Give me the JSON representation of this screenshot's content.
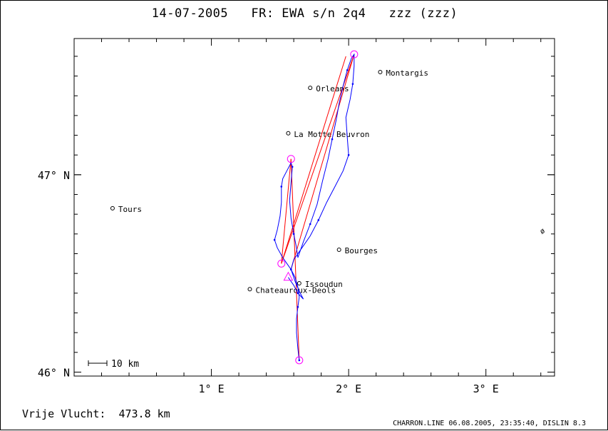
{
  "header": {
    "title": "14-07-2005   FR: EWA s/n 2q4   zzz (zzz)"
  },
  "axes": {
    "x_ticks": [
      {
        "label": "1° E",
        "lon": 1.0
      },
      {
        "label": "2° E",
        "lon": 2.0
      },
      {
        "label": "3° E",
        "lon": 3.0
      }
    ],
    "y_ticks": [
      {
        "label": "47° N",
        "lat": 47.0
      },
      {
        "label": "46° N",
        "lat": 46.0
      }
    ],
    "lon_range": [
      0.0,
      3.5
    ],
    "lat_range": [
      45.98,
      47.69
    ]
  },
  "scale_bar": {
    "label": "10 km",
    "km": 10
  },
  "towns": [
    {
      "name": "Montargis",
      "lon": 2.23,
      "lat": 47.52
    },
    {
      "name": "Orleans",
      "lon": 1.72,
      "lat": 47.44
    },
    {
      "name": "La Motte Beuvron",
      "lon": 1.56,
      "lat": 47.21
    },
    {
      "name": "Tours",
      "lon": 0.28,
      "lat": 46.83
    },
    {
      "name": "Bourges",
      "lon": 1.93,
      "lat": 46.62
    },
    {
      "name": "Issoudun",
      "lon": 1.64,
      "lat": 46.45
    },
    {
      "name": "Chateauroux-Deols",
      "lon": 1.28,
      "lat": 46.42
    }
  ],
  "task_points": [
    {
      "name": "start",
      "lon": 1.64,
      "lat": 46.06
    },
    {
      "name": "tp1",
      "lon": 1.58,
      "lat": 47.08
    },
    {
      "name": "tp2",
      "lon": 1.51,
      "lat": 46.55
    },
    {
      "name": "tp3",
      "lon": 2.04,
      "lat": 47.61
    }
  ],
  "finish_marker": {
    "lon": 1.56,
    "lat": 46.48
  },
  "track": [
    [
      1.64,
      46.06
    ],
    [
      1.63,
      46.12
    ],
    [
      1.62,
      46.2
    ],
    [
      1.62,
      46.27
    ],
    [
      1.63,
      46.33
    ],
    [
      1.64,
      46.38
    ],
    [
      1.63,
      46.43
    ],
    [
      1.61,
      46.48
    ],
    [
      1.58,
      46.52
    ],
    [
      1.55,
      46.55
    ],
    [
      1.52,
      46.58
    ],
    [
      1.48,
      46.63
    ],
    [
      1.46,
      46.67
    ],
    [
      1.48,
      46.72
    ],
    [
      1.5,
      46.79
    ],
    [
      1.51,
      46.86
    ],
    [
      1.51,
      46.94
    ],
    [
      1.52,
      46.98
    ],
    [
      1.55,
      47.02
    ],
    [
      1.58,
      47.06
    ],
    [
      1.59,
      47.04
    ],
    [
      1.58,
      46.96
    ],
    [
      1.57,
      46.87
    ],
    [
      1.58,
      46.78
    ],
    [
      1.6,
      46.7
    ],
    [
      1.62,
      46.63
    ],
    [
      1.63,
      46.58
    ],
    [
      1.67,
      46.66
    ],
    [
      1.72,
      46.75
    ],
    [
      1.77,
      46.85
    ],
    [
      1.81,
      46.97
    ],
    [
      1.85,
      47.08
    ],
    [
      1.88,
      47.18
    ],
    [
      1.91,
      47.28
    ],
    [
      1.93,
      47.36
    ],
    [
      1.96,
      47.45
    ],
    [
      1.99,
      47.53
    ],
    [
      2.02,
      47.59
    ],
    [
      2.04,
      47.61
    ],
    [
      2.04,
      47.55
    ],
    [
      2.03,
      47.46
    ],
    [
      2.01,
      47.38
    ],
    [
      1.98,
      47.29
    ],
    [
      1.99,
      47.19
    ],
    [
      2.0,
      47.1
    ],
    [
      1.96,
      47.02
    ],
    [
      1.9,
      46.94
    ],
    [
      1.84,
      46.86
    ],
    [
      1.78,
      46.77
    ],
    [
      1.72,
      46.69
    ],
    [
      1.66,
      46.63
    ],
    [
      1.6,
      46.57
    ],
    [
      1.58,
      46.52
    ],
    [
      1.61,
      46.46
    ],
    [
      1.64,
      46.41
    ],
    [
      1.67,
      46.37
    ],
    [
      1.63,
      46.4
    ],
    [
      1.6,
      46.44
    ],
    [
      1.57,
      46.47
    ],
    [
      1.56,
      46.48
    ]
  ],
  "task_lines": [
    [
      [
        1.64,
        46.06
      ],
      [
        1.58,
        47.08
      ]
    ],
    [
      [
        1.58,
        47.08
      ],
      [
        1.51,
        46.55
      ]
    ],
    [
      [
        1.51,
        46.55
      ],
      [
        2.04,
        47.61
      ]
    ],
    [
      [
        2.04,
        47.61
      ],
      [
        1.58,
        46.52
      ]
    ],
    [
      [
        1.51,
        46.55
      ],
      [
        1.98,
        47.6
      ]
    ]
  ],
  "stray_glyph": "ø",
  "footer": {
    "distance": "Vrije Vlucht:  473.8 km",
    "program": "CHARRON.LINE 06.08.2005, 23:35:40, DISLIN 8.3"
  },
  "colors": {
    "track": "#0000ff",
    "task": "#ff0000",
    "turnpoint": "#ff00ff",
    "frame": "#000000"
  }
}
